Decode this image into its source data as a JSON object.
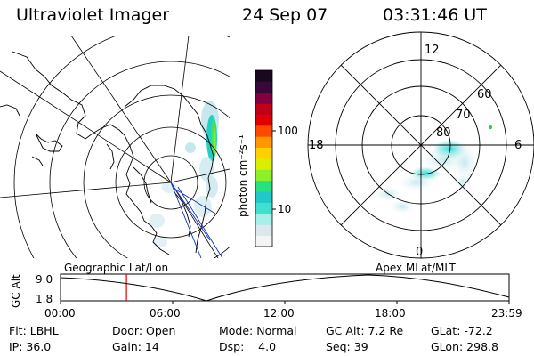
{
  "header": {
    "title": "Ultraviolet Imager",
    "date": "24 Sep 07",
    "time": "03:31:46 UT"
  },
  "colorbar": {
    "unit_label": "photon cm⁻²s⁻¹",
    "ticks": [
      "100",
      "10"
    ],
    "stops": [
      "#f4f4f4",
      "#dde8ee",
      "#a6f0ea",
      "#3ee0d0",
      "#20c8c8",
      "#28e080",
      "#8ef028",
      "#d8f000",
      "#ffd000",
      "#ff9800",
      "#ff4800",
      "#e00000",
      "#c00018",
      "#800040",
      "#380838",
      "#1a0820"
    ]
  },
  "map_left": {
    "caption": "Geographic Lat/Lon"
  },
  "map_right": {
    "caption": "Apex MLat/MLT",
    "mlt_labels": [
      "12",
      "18",
      "6",
      "0"
    ],
    "lat_labels": [
      "60",
      "70",
      "80"
    ]
  },
  "timeline": {
    "y_axis_label": "GC Alt",
    "y_ticks": [
      "9.0",
      "1.8"
    ],
    "x_ticks": [
      "00:00",
      "06:00",
      "12:00",
      "18:00",
      "23:59"
    ],
    "current_time_hours": 3.53
  },
  "info": {
    "flt_label": "Flt: LBHL",
    "ip_label": "IP: 36.0",
    "door_label": "Door: Open",
    "gain_label": "Gain: 14",
    "mode_label": "Mode: Normal",
    "dsp_label": "Dsp:    4.0",
    "gcalt_label": "GC Alt: 7.2 Re",
    "seq_label": "Seq: 39",
    "glat_label": "GLat: -72.2",
    "glon_label": "GLon: 298.8"
  }
}
